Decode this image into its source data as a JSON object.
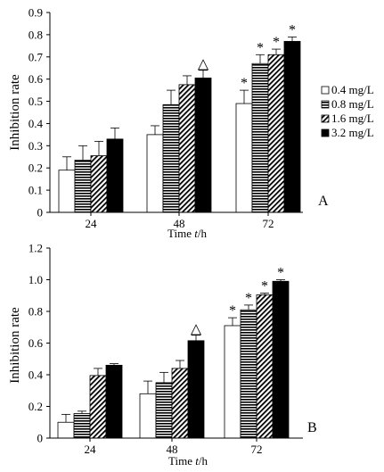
{
  "chart_data": [
    {
      "panel": "A",
      "type": "bar",
      "categories": [
        "24",
        "48",
        "72"
      ],
      "ylabel": "Inhibition rate",
      "xlabel": {
        "prefix": "Time ",
        "var": "t",
        "suffix": "/h"
      },
      "ylim": [
        0,
        0.9
      ],
      "yticks": [
        "0",
        "0.1",
        "0.2",
        "0.3",
        "0.4",
        "0.5",
        "0.6",
        "0.7",
        "0.8",
        "0.9"
      ],
      "legend": {
        "position": "right",
        "entries": [
          "0.4 mg/L",
          "0.8 mg/L",
          "1.6 mg/L",
          "3.2 mg/L"
        ]
      },
      "series": [
        {
          "name": "0.4 mg/L",
          "fill": "white",
          "values": [
            0.19,
            0.35,
            0.49
          ],
          "errors": [
            0.06,
            0.04,
            0.06
          ],
          "marks": [
            "",
            "",
            "*"
          ]
        },
        {
          "name": "0.8 mg/L",
          "fill": "hstripe",
          "values": [
            0.235,
            0.485,
            0.67
          ],
          "errors": [
            0.065,
            0.065,
            0.04
          ],
          "marks": [
            "",
            "",
            "*"
          ]
        },
        {
          "name": "1.6 mg/L",
          "fill": "diag",
          "values": [
            0.255,
            0.575,
            0.71
          ],
          "errors": [
            0.065,
            0.04,
            0.025
          ],
          "marks": [
            "",
            "",
            "*"
          ]
        },
        {
          "name": "3.2 mg/L",
          "fill": "black",
          "values": [
            0.33,
            0.605,
            0.77
          ],
          "errors": [
            0.05,
            0.035,
            0.02
          ],
          "marks": [
            "",
            "△",
            "*"
          ]
        }
      ]
    },
    {
      "panel": "B",
      "type": "bar",
      "categories": [
        "24",
        "48",
        "72"
      ],
      "ylabel": "Inhibition rate",
      "xlabel": {
        "prefix": "Time ",
        "var": "t",
        "suffix": "/h"
      },
      "ylim": [
        0,
        1.2
      ],
      "yticks": [
        "0",
        "0.2",
        "0.4",
        "0.6",
        "0.8",
        "1.0",
        "1.2"
      ],
      "series": [
        {
          "name": "0.4 mg/L",
          "fill": "white",
          "values": [
            0.1,
            0.28,
            0.71
          ],
          "errors": [
            0.05,
            0.08,
            0.05
          ],
          "marks": [
            "",
            "",
            "*"
          ]
        },
        {
          "name": "0.8 mg/L",
          "fill": "hstripe",
          "values": [
            0.155,
            0.35,
            0.81
          ],
          "errors": [
            0.015,
            0.065,
            0.03
          ],
          "marks": [
            "",
            "",
            "*"
          ]
        },
        {
          "name": "1.6 mg/L",
          "fill": "diag",
          "values": [
            0.395,
            0.44,
            0.905
          ],
          "errors": [
            0.045,
            0.05,
            0.01
          ],
          "marks": [
            "",
            "",
            "*"
          ]
        },
        {
          "name": "3.2 mg/L",
          "fill": "black",
          "values": [
            0.46,
            0.615,
            0.99
          ],
          "errors": [
            0.01,
            0.035,
            0.01
          ],
          "marks": [
            "",
            "△",
            "*"
          ]
        }
      ]
    }
  ]
}
